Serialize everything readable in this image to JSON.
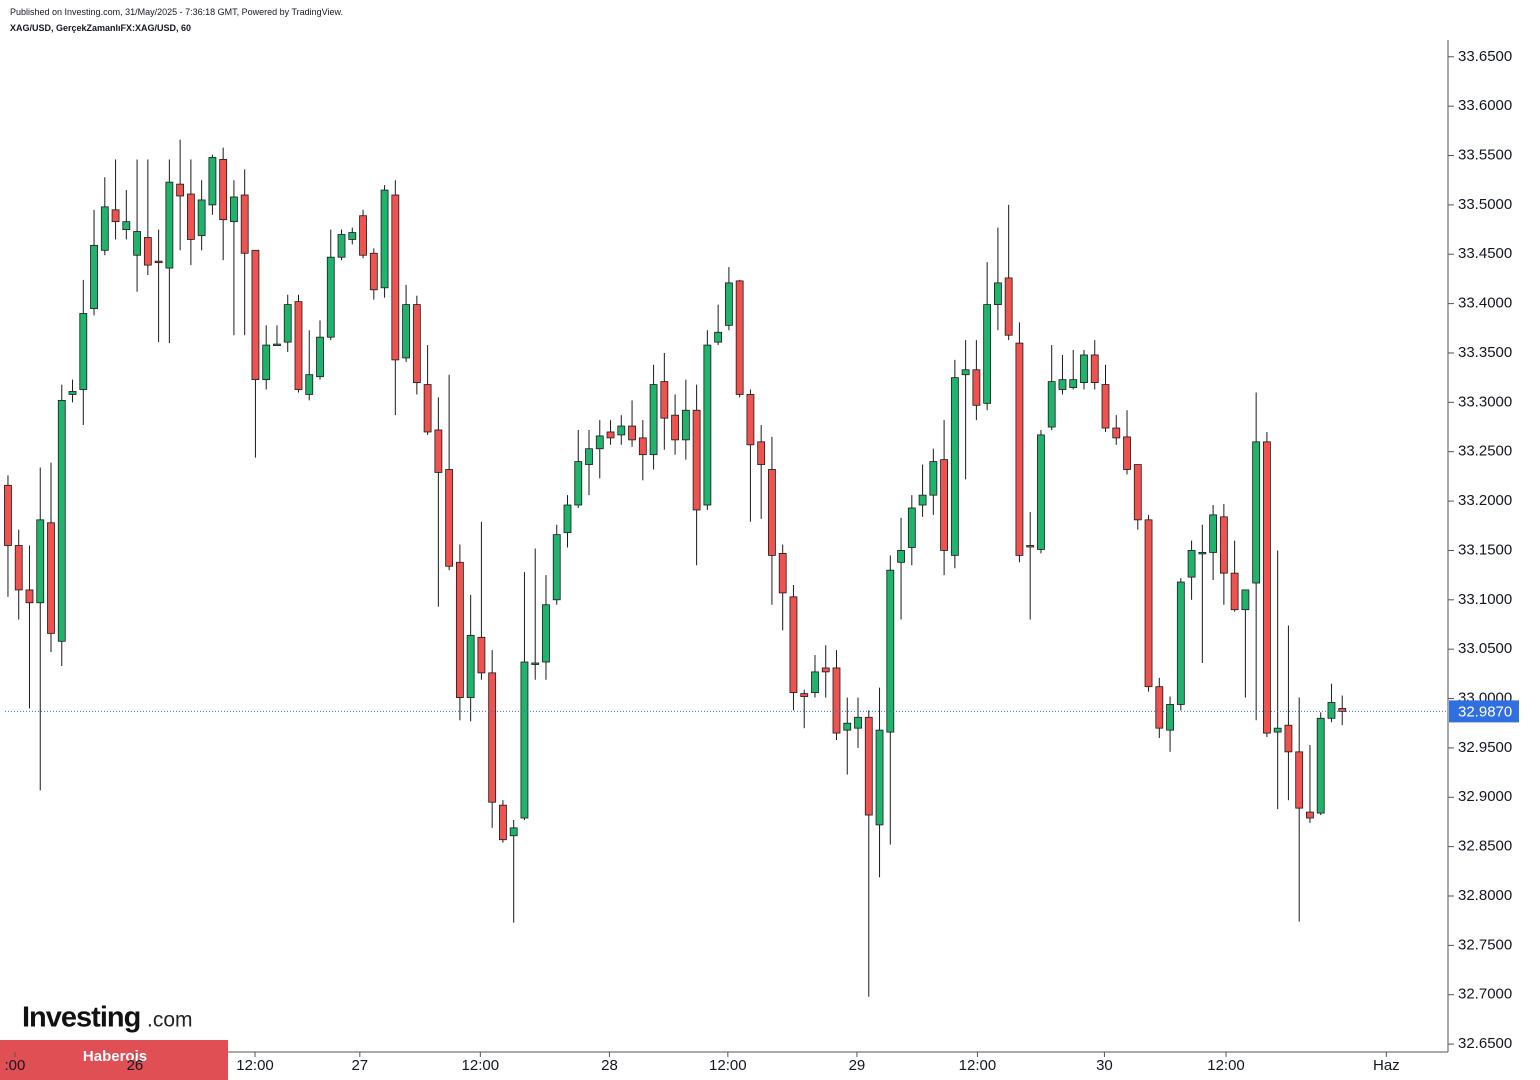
{
  "header": {
    "published": "Published on Investing.com, 31/May/2025 - 7:36:18 GMT, Powered by TradingView.",
    "symbol": "XAG/USD, GerçekZamanlıFX:XAG/USD, 60"
  },
  "logo": {
    "name": "Investing",
    "suffix": ".com"
  },
  "banner": "Haberois",
  "chart_data": {
    "type": "candlestick",
    "up_color": "#1fb36b",
    "down_color": "#ef5350",
    "outline_color": "#1a1a1a",
    "open": [
      33.216,
      33.155,
      33.11,
      33.097,
      33.178,
      33.058,
      33.308,
      33.313,
      33.395,
      33.454,
      33.495,
      33.475,
      33.449,
      33.467,
      33.443,
      33.436,
      33.521,
      33.511,
      33.469,
      33.5,
      33.546,
      33.483,
      33.51,
      33.454,
      33.323,
      33.359,
      33.361,
      33.402,
      33.308,
      33.326,
      33.366,
      33.447,
      33.465,
      33.489,
      33.451,
      33.416,
      33.51,
      33.345,
      33.399,
      33.318,
      33.272,
      33.232,
      33.138,
      33.001,
      33.062,
      33.026,
      32.892,
      32.861,
      32.879,
      33.036,
      33.037,
      33.1,
      33.168,
      33.196,
      33.237,
      33.253,
      33.27,
      33.267,
      33.276,
      33.264,
      33.247,
      33.321,
      33.287,
      33.262,
      33.292,
      33.196,
      33.361,
      33.378,
      33.423,
      33.308,
      33.26,
      33.232,
      33.147,
      33.103,
      33.005,
      33.006,
      33.031,
      33.031,
      32.968,
      32.97,
      32.981,
      32.872,
      32.966,
      33.138,
      33.153,
      33.196,
      33.206,
      33.242,
      33.145,
      33.328,
      33.333,
      33.299,
      33.399,
      33.426,
      33.36,
      33.155,
      33.151,
      33.275,
      33.313,
      33.315,
      33.32,
      33.348,
      33.318,
      33.274,
      33.265,
      33.237,
      33.181,
      33.012,
      32.968,
      32.994,
      33.123,
      33.147,
      33.148,
      33.184,
      33.127,
      33.09,
      33.117,
      33.26,
      32.966,
      32.973,
      32.946,
      32.885,
      32.884,
      32.98,
      32.99
    ],
    "high": [
      33.226,
      33.171,
      33.155,
      33.234,
      33.239,
      33.318,
      33.323,
      33.424,
      33.495,
      33.528,
      33.546,
      33.515,
      33.546,
      33.546,
      33.475,
      33.546,
      33.566,
      33.546,
      33.525,
      33.551,
      33.558,
      33.525,
      33.536,
      33.454,
      33.378,
      33.378,
      33.409,
      33.409,
      33.373,
      33.383,
      33.475,
      33.475,
      33.477,
      33.495,
      33.456,
      33.52,
      33.525,
      33.419,
      33.408,
      33.358,
      33.305,
      33.328,
      33.156,
      33.105,
      33.179,
      33.049,
      32.897,
      32.877,
      33.128,
      33.152,
      33.125,
      33.176,
      33.206,
      33.272,
      33.272,
      33.282,
      33.282,
      33.287,
      33.302,
      33.282,
      33.338,
      33.35,
      33.308,
      33.323,
      33.318,
      33.373,
      33.399,
      33.437,
      33.424,
      33.313,
      33.277,
      33.265,
      33.156,
      33.115,
      33.009,
      33.044,
      33.054,
      33.049,
      33.001,
      33.001,
      32.988,
      33.011,
      33.145,
      33.183,
      33.206,
      33.237,
      33.253,
      33.282,
      33.343,
      33.363,
      33.363,
      33.442,
      33.477,
      33.5,
      33.381,
      33.189,
      33.272,
      33.358,
      33.348,
      33.353,
      33.353,
      33.363,
      33.338,
      33.287,
      33.292,
      33.237,
      33.186,
      33.021,
      33.002,
      33.122,
      33.16,
      33.176,
      33.196,
      33.197,
      33.16,
      33.11,
      33.31,
      33.27,
      33.15,
      33.074,
      33.001,
      32.953,
      32.986,
      33.015,
      33.003
    ],
    "low": [
      33.103,
      33.08,
      32.99,
      32.907,
      33.047,
      33.033,
      33.3,
      33.277,
      33.388,
      33.449,
      33.465,
      33.465,
      33.412,
      33.429,
      33.361,
      33.36,
      33.454,
      33.439,
      33.454,
      33.49,
      33.444,
      33.368,
      33.368,
      33.244,
      33.313,
      33.358,
      33.351,
      33.31,
      33.302,
      33.323,
      33.363,
      33.444,
      33.46,
      33.446,
      33.404,
      33.406,
      33.287,
      33.341,
      33.308,
      33.267,
      33.093,
      33.13,
      32.978,
      32.977,
      33.019,
      32.869,
      32.854,
      32.773,
      32.877,
      33.019,
      33.019,
      33.095,
      33.153,
      33.193,
      33.206,
      33.223,
      33.257,
      33.257,
      33.255,
      33.221,
      33.232,
      33.252,
      33.247,
      33.242,
      33.135,
      33.191,
      33.358,
      33.373,
      33.305,
      33.179,
      33.182,
      33.095,
      33.069,
      32.988,
      32.97,
      33.001,
      33.001,
      32.958,
      32.923,
      32.95,
      32.698,
      32.819,
      32.852,
      33.08,
      33.135,
      33.184,
      33.186,
      33.125,
      33.132,
      33.222,
      33.282,
      33.292,
      33.373,
      33.363,
      33.138,
      33.08,
      33.147,
      33.272,
      33.308,
      33.313,
      33.313,
      33.313,
      33.27,
      33.257,
      33.227,
      33.171,
      33.007,
      32.96,
      32.946,
      32.988,
      33.1,
      33.036,
      33.12,
      33.095,
      33.088,
      33.001,
      32.978,
      32.961,
      32.888,
      32.897,
      32.774,
      32.874,
      32.882,
      32.976,
      32.973
    ],
    "close": [
      33.155,
      33.11,
      33.097,
      33.181,
      33.066,
      33.302,
      33.311,
      33.39,
      33.459,
      33.498,
      33.483,
      33.483,
      33.473,
      33.439,
      33.442,
      33.523,
      33.509,
      33.465,
      33.505,
      33.548,
      33.485,
      33.508,
      33.451,
      33.323,
      33.358,
      33.359,
      33.399,
      33.313,
      33.328,
      33.366,
      33.447,
      33.47,
      33.472,
      33.449,
      33.414,
      33.515,
      33.343,
      33.399,
      33.32,
      33.27,
      33.229,
      33.134,
      33.001,
      33.064,
      33.026,
      32.895,
      32.857,
      32.869,
      33.037,
      33.036,
      33.095,
      33.166,
      33.196,
      33.24,
      33.253,
      33.266,
      33.264,
      33.276,
      33.262,
      33.247,
      33.318,
      33.284,
      33.262,
      33.292,
      33.191,
      33.358,
      33.371,
      33.421,
      33.308,
      33.257,
      33.237,
      33.145,
      33.107,
      33.006,
      33.002,
      33.027,
      33.027,
      32.965,
      32.975,
      32.981,
      32.882,
      32.968,
      33.13,
      33.15,
      33.193,
      33.206,
      33.24,
      33.15,
      33.325,
      33.333,
      33.297,
      33.399,
      33.421,
      33.368,
      33.145,
      33.154,
      33.267,
      33.321,
      33.323,
      33.323,
      33.348,
      33.32,
      33.274,
      33.264,
      33.232,
      33.181,
      33.012,
      32.97,
      32.994,
      33.118,
      33.15,
      33.148,
      33.186,
      33.127,
      33.09,
      33.11,
      33.26,
      32.965,
      32.97,
      32.946,
      32.889,
      32.879,
      32.98,
      32.996,
      32.987
    ],
    "xlim": [
      -0.74,
      133.83
    ],
    "xticks": [
      {
        "value": 0.65,
        "label": ":00"
      },
      {
        "value": 11.8,
        "label": "26"
      },
      {
        "value": 22.96,
        "label": "12:00"
      },
      {
        "value": 32.7,
        "label": "27"
      },
      {
        "value": 43.9,
        "label": "12:00"
      },
      {
        "value": 55.9,
        "label": "28"
      },
      {
        "value": 66.9,
        "label": "12:00"
      },
      {
        "value": 78.9,
        "label": "29"
      },
      {
        "value": 90.1,
        "label": "12:00"
      },
      {
        "value": 101.9,
        "label": "30"
      },
      {
        "value": 113.2,
        "label": "12:00"
      },
      {
        "value": 128.1,
        "label": "Haz"
      }
    ],
    "ylim": [
      32.642,
      33.667
    ],
    "yticks": [
      {
        "value": 32.65,
        "label": "32.6500"
      },
      {
        "value": 32.7,
        "label": "32.7000"
      },
      {
        "value": 32.75,
        "label": "32.7500"
      },
      {
        "value": 32.8,
        "label": "32.8000"
      },
      {
        "value": 32.85,
        "label": "32.8500"
      },
      {
        "value": 32.9,
        "label": "32.9000"
      },
      {
        "value": 32.95,
        "label": "32.9500"
      },
      {
        "value": 33.0,
        "label": "33.0000"
      },
      {
        "value": 33.05,
        "label": "33.0500"
      },
      {
        "value": 33.1,
        "label": "33.1000"
      },
      {
        "value": 33.15,
        "label": "33.1500"
      },
      {
        "value": 33.2,
        "label": "33.2000"
      },
      {
        "value": 33.25,
        "label": "33.2500"
      },
      {
        "value": 33.3,
        "label": "33.3000"
      },
      {
        "value": 33.35,
        "label": "33.3500"
      },
      {
        "value": 33.4,
        "label": "33.4000"
      },
      {
        "value": 33.45,
        "label": "33.4500"
      },
      {
        "value": 33.5,
        "label": "33.5000"
      },
      {
        "value": 33.55,
        "label": "33.5500"
      },
      {
        "value": 33.6,
        "label": "33.6000"
      },
      {
        "value": 33.65,
        "label": "33.6500"
      }
    ],
    "last_price": {
      "value": 32.987,
      "label": "32.9870",
      "color": "#2f6fe0"
    },
    "grid": false
  }
}
